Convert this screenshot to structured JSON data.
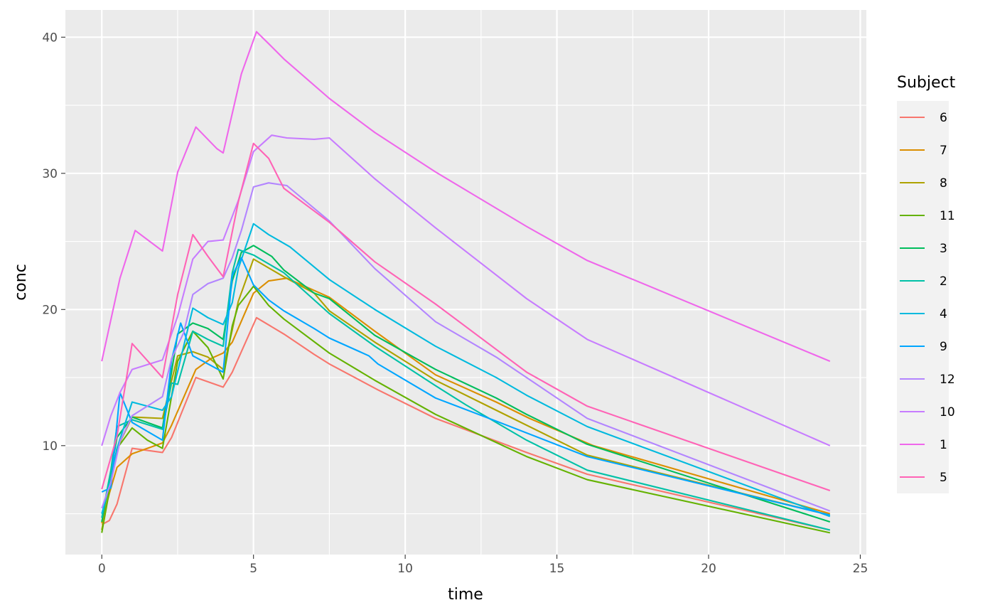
{
  "chart_data": {
    "type": "line",
    "xlabel": "time",
    "ylabel": "conc",
    "xlim": [
      -1.2,
      25.2
    ],
    "ylim": [
      2.0,
      42.0
    ],
    "x_ticks": [
      0,
      5,
      10,
      15,
      20,
      25
    ],
    "y_ticks": [
      10,
      20,
      30,
      40
    ],
    "x_tick_labels": [
      "0",
      "5",
      "10",
      "15",
      "20",
      "25"
    ],
    "y_tick_labels": [
      "10",
      "20",
      "30",
      "40"
    ],
    "grid": true,
    "panel_background": "#EBEBEB",
    "grid_color": "#FFFFFF",
    "legend": {
      "title": "Subject",
      "position": "right"
    },
    "series": [
      {
        "name": "6",
        "color": "#F8766D",
        "points": [
          [
            0,
            4.2
          ],
          [
            0.25,
            4.5
          ],
          [
            0.5,
            5.7
          ],
          [
            1.0,
            9.8
          ],
          [
            2.0,
            9.5
          ],
          [
            2.3,
            10.6
          ],
          [
            3.1,
            15.0
          ],
          [
            4.0,
            14.3
          ],
          [
            4.3,
            15.4
          ],
          [
            5.1,
            19.4
          ],
          [
            6.0,
            18.2
          ],
          [
            7.0,
            16.7
          ],
          [
            7.5,
            16.0
          ],
          [
            9.1,
            14.1
          ],
          [
            11.0,
            12.0
          ],
          [
            14.0,
            9.5
          ],
          [
            16.0,
            7.9
          ],
          [
            24.0,
            3.8
          ]
        ]
      },
      {
        "name": "7",
        "color": "#DB8E00",
        "points": [
          [
            0,
            4.3
          ],
          [
            0.25,
            6.5
          ],
          [
            0.5,
            8.4
          ],
          [
            1.0,
            9.4
          ],
          [
            2.0,
            10.2
          ],
          [
            2.3,
            11.5
          ],
          [
            3.1,
            15.6
          ],
          [
            3.6,
            16.4
          ],
          [
            4.0,
            16.8
          ],
          [
            4.3,
            17.6
          ],
          [
            5.0,
            21.2
          ],
          [
            5.5,
            22.1
          ],
          [
            6.1,
            22.3
          ],
          [
            7.5,
            20.9
          ],
          [
            9.0,
            18.4
          ],
          [
            11.0,
            15.2
          ],
          [
            13.0,
            13.2
          ],
          [
            14.1,
            12.0
          ],
          [
            16.2,
            10.0
          ],
          [
            24.0,
            5.0
          ]
        ]
      },
      {
        "name": "8",
        "color": "#AEA200",
        "points": [
          [
            0,
            3.8
          ],
          [
            0.3,
            7.4
          ],
          [
            0.5,
            9.8
          ],
          [
            1.0,
            12.1
          ],
          [
            2.0,
            12.0
          ],
          [
            2.5,
            16.6
          ],
          [
            3.0,
            16.9
          ],
          [
            3.5,
            16.5
          ],
          [
            4.0,
            15.6
          ],
          [
            4.3,
            18.5
          ],
          [
            4.5,
            20.6
          ],
          [
            5.0,
            23.7
          ],
          [
            6.0,
            22.4
          ],
          [
            7.0,
            21.2
          ],
          [
            7.5,
            19.9
          ],
          [
            9.0,
            17.6
          ],
          [
            11.0,
            14.8
          ],
          [
            13.0,
            12.6
          ],
          [
            16.0,
            9.3
          ],
          [
            24.0,
            4.9
          ]
        ]
      },
      {
        "name": "11",
        "color": "#64B200",
        "points": [
          [
            0,
            3.6
          ],
          [
            0.3,
            7.3
          ],
          [
            0.5,
            9.8
          ],
          [
            1.0,
            11.3
          ],
          [
            1.5,
            10.4
          ],
          [
            2.0,
            9.8
          ],
          [
            2.5,
            16.2
          ],
          [
            3.0,
            18.4
          ],
          [
            3.5,
            17.2
          ],
          [
            4.0,
            14.9
          ],
          [
            4.3,
            18.8
          ],
          [
            4.5,
            20.3
          ],
          [
            5.0,
            21.7
          ],
          [
            5.5,
            20.3
          ],
          [
            6.0,
            19.3
          ],
          [
            7.5,
            16.8
          ],
          [
            9.0,
            14.8
          ],
          [
            11.0,
            12.3
          ],
          [
            14.0,
            9.2
          ],
          [
            16.0,
            7.5
          ],
          [
            24.0,
            3.6
          ]
        ]
      },
      {
        "name": "3",
        "color": "#00BD5C",
        "points": [
          [
            0,
            4.4
          ],
          [
            0.3,
            8.1
          ],
          [
            0.5,
            10.6
          ],
          [
            1.0,
            12.1
          ],
          [
            2.0,
            11.3
          ],
          [
            2.5,
            18.2
          ],
          [
            3.0,
            19.0
          ],
          [
            3.5,
            18.6
          ],
          [
            4.0,
            17.8
          ],
          [
            4.3,
            22.1
          ],
          [
            4.6,
            24.2
          ],
          [
            5.0,
            24.7
          ],
          [
            5.6,
            23.9
          ],
          [
            6.0,
            22.9
          ],
          [
            7.0,
            21.2
          ],
          [
            7.5,
            20.8
          ],
          [
            9.0,
            18.1
          ],
          [
            11.0,
            15.6
          ],
          [
            13.0,
            13.5
          ],
          [
            14.0,
            12.3
          ],
          [
            16.0,
            10.1
          ],
          [
            24.0,
            4.4
          ]
        ]
      },
      {
        "name": "2",
        "color": "#00C1A7",
        "points": [
          [
            0,
            4.7
          ],
          [
            0.3,
            8.2
          ],
          [
            0.5,
            11.4
          ],
          [
            1.0,
            11.9
          ],
          [
            2.0,
            11.2
          ],
          [
            2.3,
            14.6
          ],
          [
            2.5,
            14.5
          ],
          [
            3.0,
            18.4
          ],
          [
            3.5,
            17.8
          ],
          [
            4.0,
            17.3
          ],
          [
            4.3,
            22.7
          ],
          [
            4.5,
            24.4
          ],
          [
            5.0,
            24.0
          ],
          [
            6.0,
            22.7
          ],
          [
            7.5,
            19.7
          ],
          [
            9.0,
            17.3
          ],
          [
            11.0,
            14.4
          ],
          [
            12.0,
            13.0
          ],
          [
            14.0,
            10.4
          ],
          [
            16.0,
            8.2
          ],
          [
            24.0,
            3.8
          ]
        ]
      },
      {
        "name": "4",
        "color": "#00BADE",
        "points": [
          [
            0,
            5.0
          ],
          [
            0.3,
            7.5
          ],
          [
            0.5,
            9.8
          ],
          [
            1.0,
            13.2
          ],
          [
            2.0,
            12.6
          ],
          [
            2.3,
            13.6
          ],
          [
            3.0,
            20.1
          ],
          [
            3.5,
            19.4
          ],
          [
            4.0,
            18.9
          ],
          [
            4.3,
            20.5
          ],
          [
            4.5,
            23.0
          ],
          [
            5.0,
            26.3
          ],
          [
            5.5,
            25.5
          ],
          [
            6.2,
            24.6
          ],
          [
            7.5,
            22.2
          ],
          [
            9.0,
            20.0
          ],
          [
            11.0,
            17.3
          ],
          [
            13.0,
            15.0
          ],
          [
            14.0,
            13.7
          ],
          [
            16.0,
            11.4
          ],
          [
            24.0,
            4.8
          ]
        ]
      },
      {
        "name": "9",
        "color": "#00A6FF",
        "points": [
          [
            0,
            6.6
          ],
          [
            0.3,
            6.9
          ],
          [
            0.6,
            13.9
          ],
          [
            1.0,
            11.7
          ],
          [
            2.0,
            10.4
          ],
          [
            2.3,
            16.3
          ],
          [
            2.6,
            19.0
          ],
          [
            3.0,
            16.6
          ],
          [
            4.0,
            15.4
          ],
          [
            4.3,
            22.5
          ],
          [
            4.6,
            23.8
          ],
          [
            5.0,
            21.8
          ],
          [
            5.5,
            20.7
          ],
          [
            6.0,
            19.9
          ],
          [
            7.0,
            18.6
          ],
          [
            7.5,
            17.9
          ],
          [
            8.8,
            16.6
          ],
          [
            9.1,
            16.0
          ],
          [
            11.0,
            13.5
          ],
          [
            13.0,
            11.8
          ],
          [
            16.0,
            9.2
          ],
          [
            24.0,
            4.9
          ]
        ]
      },
      {
        "name": "12",
        "color": "#B385FF",
        "points": [
          [
            0,
            5.4
          ],
          [
            0.3,
            7.3
          ],
          [
            0.6,
            10.3
          ],
          [
            1.0,
            12.2
          ],
          [
            2.0,
            13.6
          ],
          [
            2.3,
            16.4
          ],
          [
            2.7,
            18.3
          ],
          [
            3.0,
            21.1
          ],
          [
            3.5,
            21.9
          ],
          [
            4.0,
            22.3
          ],
          [
            4.3,
            23.8
          ],
          [
            4.6,
            25.8
          ],
          [
            5.0,
            29.0
          ],
          [
            5.5,
            29.3
          ],
          [
            6.1,
            29.1
          ],
          [
            7.5,
            26.5
          ],
          [
            9.0,
            23.0
          ],
          [
            11.0,
            19.1
          ],
          [
            13.0,
            16.5
          ],
          [
            16.0,
            12.0
          ],
          [
            24.0,
            5.2
          ]
        ]
      },
      {
        "name": "10",
        "color": "#C77CFF",
        "points": [
          [
            0,
            10.0
          ],
          [
            0.3,
            12.2
          ],
          [
            0.6,
            13.9
          ],
          [
            1.0,
            15.6
          ],
          [
            2.0,
            16.3
          ],
          [
            2.5,
            19.5
          ],
          [
            3.0,
            23.7
          ],
          [
            3.5,
            25.0
          ],
          [
            4.0,
            25.1
          ],
          [
            4.5,
            28.0
          ],
          [
            5.0,
            31.6
          ],
          [
            5.6,
            32.8
          ],
          [
            6.1,
            32.6
          ],
          [
            7.0,
            32.5
          ],
          [
            7.5,
            32.6
          ],
          [
            9.0,
            29.6
          ],
          [
            11.0,
            26.0
          ],
          [
            14.0,
            20.8
          ],
          [
            16.0,
            17.8
          ],
          [
            24.0,
            10.0
          ]
        ]
      },
      {
        "name": "1",
        "color": "#EF67EB",
        "points": [
          [
            0,
            16.2
          ],
          [
            0.6,
            22.3
          ],
          [
            1.1,
            25.8
          ],
          [
            2.0,
            24.3
          ],
          [
            2.5,
            30.1
          ],
          [
            3.1,
            33.4
          ],
          [
            3.8,
            31.8
          ],
          [
            4.0,
            31.5
          ],
          [
            4.6,
            37.3
          ],
          [
            5.1,
            40.4
          ],
          [
            5.6,
            39.3
          ],
          [
            6.0,
            38.4
          ],
          [
            7.5,
            35.5
          ],
          [
            9.0,
            33.0
          ],
          [
            11.0,
            30.1
          ],
          [
            14.0,
            26.1
          ],
          [
            16.0,
            23.6
          ],
          [
            24.0,
            16.2
          ]
        ]
      },
      {
        "name": "5",
        "color": "#FF63B6",
        "points": [
          [
            0,
            6.8
          ],
          [
            0.5,
            10.7
          ],
          [
            1.0,
            17.5
          ],
          [
            2.0,
            15.0
          ],
          [
            2.5,
            21.1
          ],
          [
            3.0,
            25.5
          ],
          [
            3.5,
            23.9
          ],
          [
            4.0,
            22.4
          ],
          [
            4.5,
            27.9
          ],
          [
            5.0,
            32.2
          ],
          [
            5.5,
            31.1
          ],
          [
            6.0,
            28.9
          ],
          [
            7.5,
            26.4
          ],
          [
            9.0,
            23.5
          ],
          [
            11.0,
            20.4
          ],
          [
            14.0,
            15.4
          ],
          [
            16.0,
            12.9
          ],
          [
            24.0,
            6.7
          ]
        ]
      }
    ]
  }
}
